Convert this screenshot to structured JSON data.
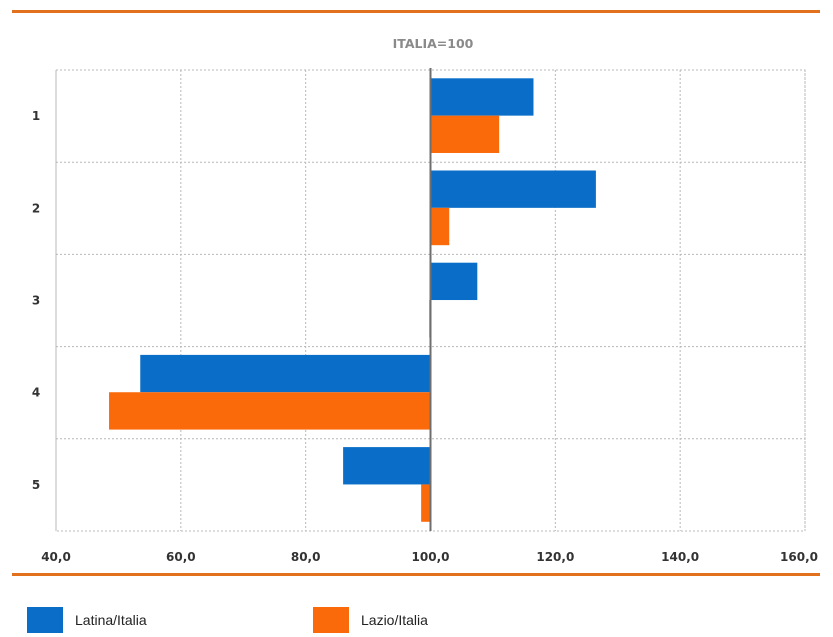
{
  "chart_data": {
    "type": "bar",
    "orientation": "horizontal",
    "title": "ITALIA=100",
    "categories": [
      "1",
      "2",
      "3",
      "4",
      "5"
    ],
    "series": [
      {
        "name": "Latina/Italia",
        "color": "#0a6ec8",
        "values": [
          116.5,
          126.5,
          107.5,
          53.5,
          86.0
        ]
      },
      {
        "name": "Lazio/Italia",
        "color": "#fa6a0a",
        "values": [
          111.0,
          103.0,
          99.8,
          48.5,
          98.5
        ]
      }
    ],
    "xlim": [
      40,
      160
    ],
    "xticks": [
      "40,0",
      "60,0",
      "80,0",
      "100,0",
      "120,0",
      "140,0",
      "160,0"
    ],
    "baseline": 100,
    "grid": true,
    "legend_position": "bottom"
  }
}
